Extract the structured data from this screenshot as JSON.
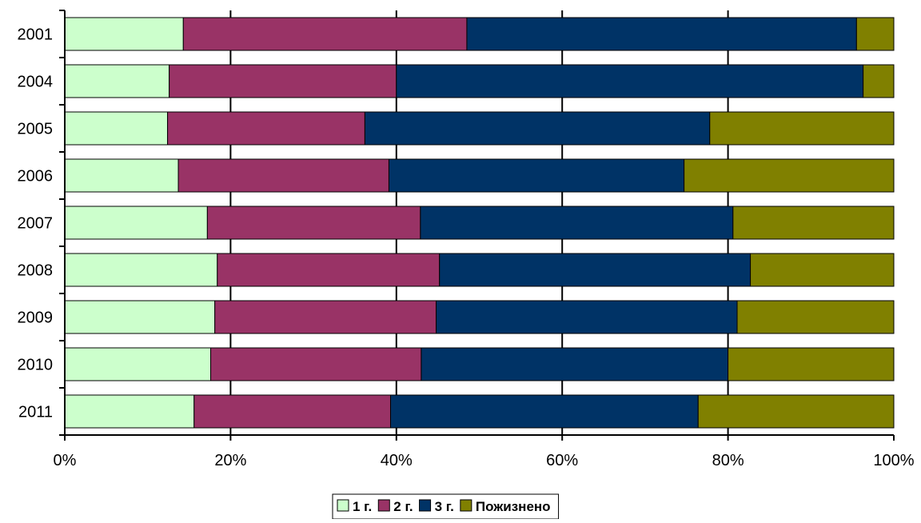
{
  "chart_data": {
    "type": "bar",
    "orientation": "horizontal",
    "stacked": "percent",
    "categories": [
      "2001",
      "2004",
      "2005",
      "2006",
      "2007",
      "2008",
      "2009",
      "2010",
      "2011"
    ],
    "series": [
      {
        "name": "1 г.",
        "color": "#CCFFCC",
        "values": [
          14.3,
          12.6,
          12.4,
          13.7,
          17.2,
          18.4,
          18.1,
          17.6,
          15.6
        ]
      },
      {
        "name": "2 г.",
        "color": "#993366",
        "values": [
          34.2,
          27.4,
          23.8,
          25.4,
          25.7,
          26.8,
          26.7,
          25.4,
          23.7
        ]
      },
      {
        "name": "3 г.",
        "color": "#003366",
        "values": [
          47.0,
          56.3,
          41.6,
          35.6,
          37.7,
          37.5,
          36.3,
          37.0,
          37.1
        ]
      },
      {
        "name": "Пожизнено",
        "color": "#808000",
        "values": [
          4.5,
          3.7,
          22.2,
          25.3,
          19.4,
          17.3,
          18.9,
          20.0,
          23.6
        ]
      }
    ],
    "xlim": [
      0,
      100
    ],
    "xticks": [
      "0%",
      "20%",
      "40%",
      "60%",
      "80%",
      "100%"
    ],
    "title": "",
    "xlabel": "",
    "ylabel": "",
    "grid": "vertical",
    "legend_position": "bottom"
  }
}
